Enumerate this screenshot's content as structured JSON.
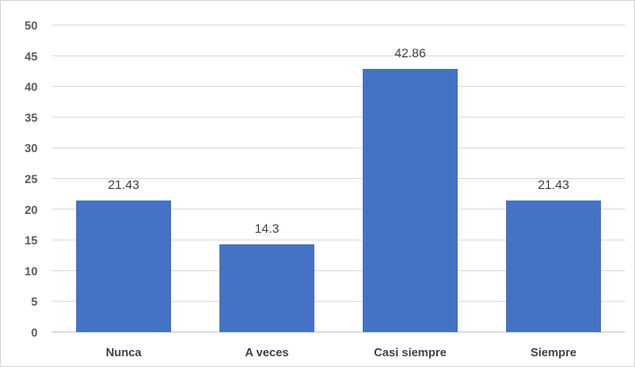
{
  "chart_data": {
    "type": "bar",
    "categories": [
      "Nunca",
      "A veces",
      "Casi siempre",
      "Siempre"
    ],
    "values": [
      21.43,
      14.3,
      42.86,
      21.43
    ],
    "data_labels": [
      "21.43",
      "14.3",
      "42.86",
      "21.43"
    ],
    "y_ticks": [
      "0",
      "5",
      "10",
      "15",
      "20",
      "25",
      "30",
      "35",
      "40",
      "45",
      "50"
    ],
    "ylim": [
      0,
      50
    ],
    "grid": true,
    "bar_color": "#4472c4",
    "gridline_color": "#d9d9d9"
  }
}
